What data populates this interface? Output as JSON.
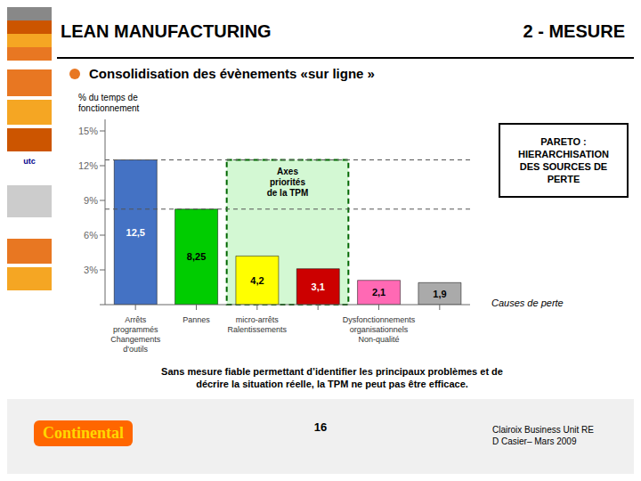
{
  "chart_data": {
    "type": "bar",
    "title": "LEAN MANUFACTURING",
    "subtitle": "2 - MESURE",
    "categories": [
      "Arrêts\nprogrammés\nChangements\nd'outils",
      "Pannes",
      "micro-arrêts\nRalentissements",
      null,
      "Dysfonctionnements\norganisationnels\nNon-qualité",
      null
    ],
    "values": [
      12.5,
      8.25,
      4.2,
      3.1,
      2.1,
      1.9
    ],
    "value_labels": [
      "12,5",
      "8,25",
      "4,2",
      "3,1",
      "2,1",
      "1,9"
    ],
    "data_labels": true,
    "colors": [
      "#4472C4",
      "#00CC00",
      "#FFFF00",
      "#CC0000",
      "#FF69B4",
      "#AAAAAA"
    ],
    "xlabel": "Causes de perte",
    "ylabel": "% du temps de\nfonctionnement",
    "ylim": [
      0,
      16
    ],
    "yticks": [
      {
        "value": 0,
        "label": ""
      },
      {
        "value": 3,
        "label": "3%"
      },
      {
        "value": 6,
        "label": "6%"
      },
      {
        "value": 9,
        "label": "9%"
      },
      {
        "value": 12,
        "label": "12%"
      },
      {
        "value": 15,
        "label": "15%"
      }
    ],
    "grid": false,
    "reference_lines": [
      12.5,
      8.25
    ],
    "highlight": {
      "label": "Axes\npriorités\nde la TPM",
      "from": 2,
      "to": 3,
      "top": 12.5
    },
    "annotations": [
      "Consolidisation des évènements «sur ligne »",
      "PARETO :\nHIERARCHISATION\nDES SOURCES DE\nPERTE",
      "Sans mesure fiable permettant d’identifier les principaux problèmes et de\ndécrire la situation réelle, la TPM ne peut pas être efficace.",
      "16",
      "Clairoix Business Unit RE\nD Casier– Mars 2009",
      "Continental",
      "utc"
    ]
  }
}
